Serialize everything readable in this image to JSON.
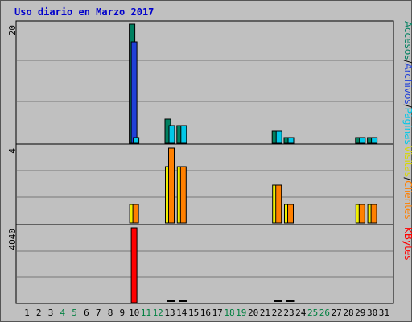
{
  "chart_data": {
    "type": "bar",
    "title": "Uso diario en Marzo 2017",
    "categories": [
      "1",
      "2",
      "3",
      "4",
      "5",
      "6",
      "7",
      "8",
      "9",
      "10",
      "11",
      "12",
      "13",
      "14",
      "15",
      "16",
      "17",
      "18",
      "19",
      "20",
      "21",
      "22",
      "23",
      "24",
      "25",
      "26",
      "27",
      "28",
      "29",
      "30",
      "31"
    ],
    "weekend_days": [
      "4",
      "5",
      "11",
      "12",
      "18",
      "19",
      "25",
      "26"
    ],
    "panels": [
      {
        "id": "top",
        "ymax_label": "20",
        "ylim": [
          0,
          20
        ],
        "series": [
          {
            "name": "Accesos",
            "color": "#008060",
            "values": [
              0,
              0,
              0,
              0,
              0,
              0,
              0,
              0,
              0,
              20,
              0,
              0,
              4,
              3,
              0,
              0,
              0,
              0,
              0,
              0,
              0,
              2,
              1,
              0,
              0,
              0,
              0,
              0,
              1,
              1,
              0
            ]
          },
          {
            "name": "Archivos",
            "color": "#2040d8",
            "values": [
              0,
              0,
              0,
              0,
              0,
              0,
              0,
              0,
              0,
              17,
              0,
              0,
              0,
              0,
              0,
              0,
              0,
              0,
              0,
              0,
              0,
              0,
              0,
              0,
              0,
              0,
              0,
              0,
              0,
              0,
              0
            ]
          },
          {
            "name": "Páginas",
            "color": "#00c8e8",
            "values": [
              0,
              0,
              0,
              0,
              0,
              0,
              0,
              0,
              0,
              1,
              0,
              0,
              3,
              3,
              0,
              0,
              0,
              0,
              0,
              0,
              0,
              2,
              1,
              0,
              0,
              0,
              0,
              0,
              1,
              1,
              0
            ]
          }
        ]
      },
      {
        "id": "middle",
        "ymax_label": "4",
        "ylim": [
          0,
          4
        ],
        "series": [
          {
            "name": "Visitas",
            "color": "#f0f000",
            "values": [
              0,
              0,
              0,
              0,
              0,
              0,
              0,
              0,
              0,
              1,
              0,
              0,
              3,
              3,
              0,
              0,
              0,
              0,
              0,
              0,
              0,
              2,
              1,
              0,
              0,
              0,
              0,
              0,
              1,
              1,
              0
            ]
          },
          {
            "name": "Clientes",
            "color": "#ff8000",
            "values": [
              0,
              0,
              0,
              0,
              0,
              0,
              0,
              0,
              0,
              1,
              0,
              0,
              4,
              3,
              0,
              0,
              0,
              0,
              0,
              0,
              0,
              2,
              1,
              0,
              0,
              0,
              0,
              0,
              1,
              1,
              0
            ]
          }
        ]
      },
      {
        "id": "bottom",
        "ymax_label": "4040",
        "ylim": [
          0,
          4040
        ],
        "series": [
          {
            "name": "KBytes",
            "color": "#ff0000",
            "values": [
              0,
              0,
              0,
              0,
              0,
              0,
              0,
              0,
              0,
              4040,
              0,
              0,
              50,
              50,
              0,
              0,
              0,
              0,
              0,
              0,
              0,
              50,
              50,
              0,
              0,
              0,
              0,
              0,
              0,
              0,
              0
            ]
          }
        ]
      }
    ]
  },
  "legend": {
    "top": [
      {
        "text": "Accesos",
        "color": "#008060"
      },
      {
        "text": "/",
        "color": "#000000"
      },
      {
        "text": "Archivos",
        "color": "#2040d8"
      },
      {
        "text": "/",
        "color": "#000000"
      },
      {
        "text": "Páginas",
        "color": "#00c8e8"
      }
    ],
    "middle": [
      {
        "text": "Visitas",
        "color": "#d8d800"
      },
      {
        "text": "/",
        "color": "#000000"
      },
      {
        "text": "Clientes",
        "color": "#ff8000"
      }
    ],
    "bottom": [
      {
        "text": "KBytes",
        "color": "#ff0000"
      }
    ]
  },
  "colors": {
    "background": "#c0c0c0",
    "title": "#0000cc",
    "weekday": "#000000",
    "weekend": "#008040"
  }
}
